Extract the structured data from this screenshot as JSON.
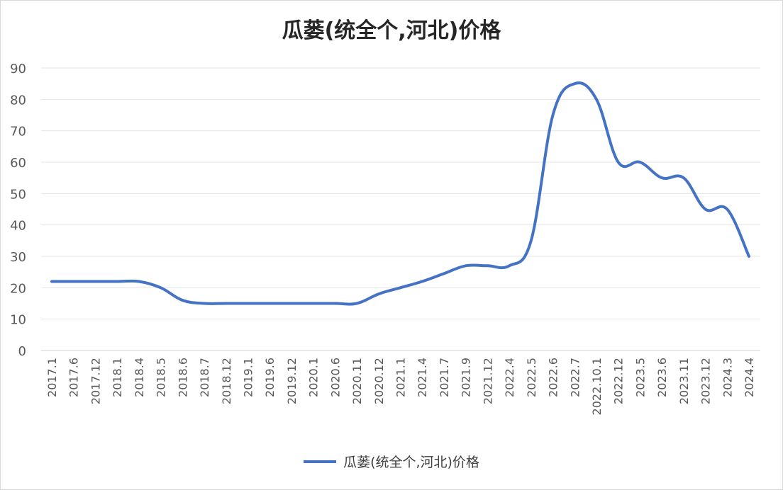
{
  "chart_data": {
    "type": "line",
    "title": "瓜蒌(统全个,河北)价格",
    "xlabel": "",
    "ylabel": "",
    "ylim": [
      0,
      90
    ],
    "yticks": [
      0,
      10,
      20,
      30,
      40,
      50,
      60,
      70,
      80,
      90
    ],
    "grid": true,
    "legend_position": "bottom",
    "categories": [
      "2017.1",
      "2017.6",
      "2017.12",
      "2018.1",
      "2018.4",
      "2018.5",
      "2018.6",
      "2018.7",
      "2018.12",
      "2019.1",
      "2019.6",
      "2019.12",
      "2020.1",
      "2020.6",
      "2020.11",
      "2020.12",
      "2021.1",
      "2021.4",
      "2021.7",
      "2021.9",
      "2021.12",
      "2022.4",
      "2022.5",
      "2022.6",
      "2022.7",
      "2022.10.1",
      "2022.12",
      "2023.5",
      "2023.6",
      "2023.11",
      "2023.12",
      "2024.3",
      "2024.4"
    ],
    "series": [
      {
        "name": "瓜蒌(统全个,河北)价格",
        "color": "#4472c4",
        "values": [
          22,
          22,
          22,
          22,
          22,
          20,
          16,
          15,
          15,
          15,
          15,
          15,
          15,
          15,
          15,
          18,
          20,
          22,
          24.5,
          27,
          27,
          27,
          35,
          75,
          85,
          80,
          60,
          60,
          55,
          55,
          45,
          45,
          30
        ]
      }
    ]
  }
}
